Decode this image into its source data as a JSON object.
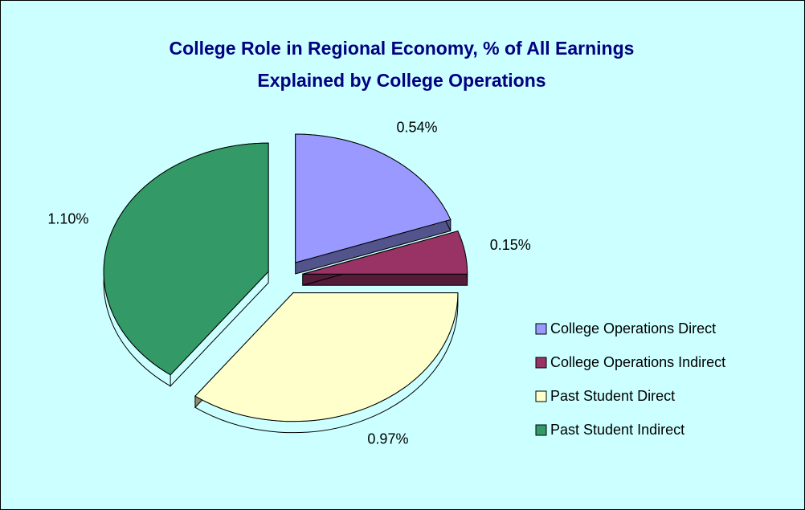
{
  "chart_data": {
    "type": "pie",
    "title": [
      "College Role in Regional Economy, % of All Earnings",
      "Explained by College Operations"
    ],
    "categories": [
      "College Operations Direct",
      "College Operations Indirect",
      "Past Student Direct",
      "Past Student Indirect"
    ],
    "values": [
      0.54,
      0.15,
      0.97,
      1.1
    ],
    "value_labels": [
      "0.54%",
      "0.15%",
      "0.97%",
      "1.10%"
    ],
    "colors": [
      "#9999ff",
      "#993366",
      "#ffffcc",
      "#339966"
    ],
    "legend": "right"
  }
}
